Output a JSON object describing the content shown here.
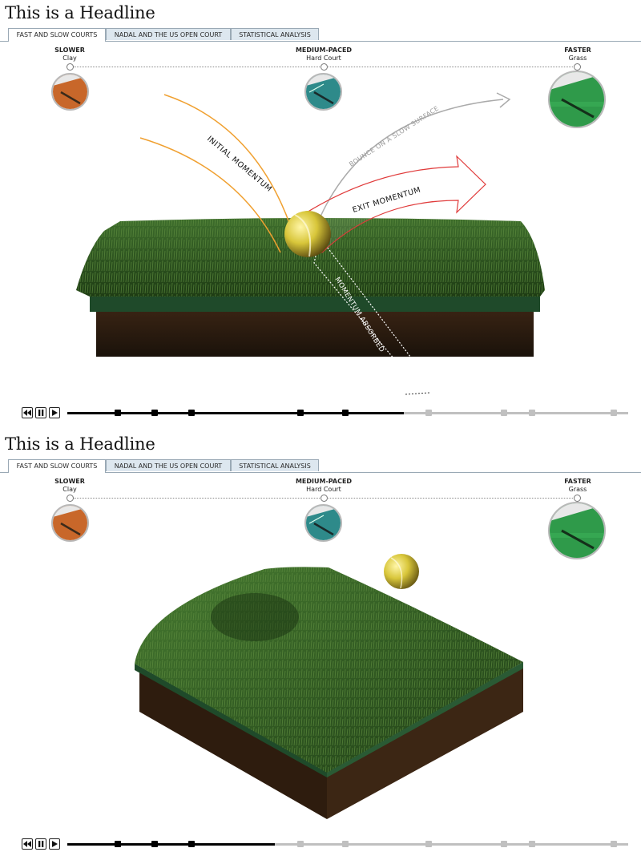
{
  "panels": [
    {
      "headline": "This is a Headline",
      "tabs": [
        {
          "label": "FAST AND SLOW COURTS",
          "active": true
        },
        {
          "label": "NADAL AND THE US OPEN COURT",
          "active": false
        },
        {
          "label": "STATISTICAL ANALYSIS",
          "active": false
        }
      ],
      "scale": [
        {
          "speed": "SLOWER",
          "surface": "Clay",
          "color": "#c8672a"
        },
        {
          "speed": "MEDIUM-PACED",
          "surface": "Hard Court",
          "color": "#2e8a8a"
        },
        {
          "speed": "FASTER",
          "surface": "Grass",
          "color": "#2f9a4a"
        }
      ],
      "annotations": {
        "initial": "INITIAL MOMENTUM",
        "bounce": "BOUNCE ON A SLOW SURFACE",
        "exit": "EXIT MOMENTUM",
        "absorbed": "MOMENTUM ABSORBED"
      },
      "timeline": {
        "markers": 10,
        "played_markers": 5,
        "progress": 0.6
      }
    },
    {
      "headline": "This is a Headline",
      "tabs": [
        {
          "label": "FAST AND SLOW COURTS",
          "active": true
        },
        {
          "label": "NADAL AND THE US OPEN COURT",
          "active": false
        },
        {
          "label": "STATISTICAL ANALYSIS",
          "active": false
        }
      ],
      "scale": [
        {
          "speed": "SLOWER",
          "surface": "Clay",
          "color": "#c8672a"
        },
        {
          "speed": "MEDIUM-PACED",
          "surface": "Hard Court",
          "color": "#2e8a8a"
        },
        {
          "speed": "FASTER",
          "surface": "Grass",
          "color": "#2f9a4a"
        }
      ],
      "timeline": {
        "markers": 10,
        "played_markers": 3,
        "progress": 0.37
      }
    }
  ],
  "controls": {
    "rewind_icon": "rewind-icon",
    "pause_icon": "pause-icon",
    "play_icon": "play-icon"
  },
  "colors": {
    "grass": "#2f5a22",
    "soil": "#2a1a0e",
    "ball": "#d8c63a",
    "arrow_red": "#e03a3a",
    "arrow_orange": "#f0a030",
    "arrow_gray": "#aaaaaa"
  }
}
